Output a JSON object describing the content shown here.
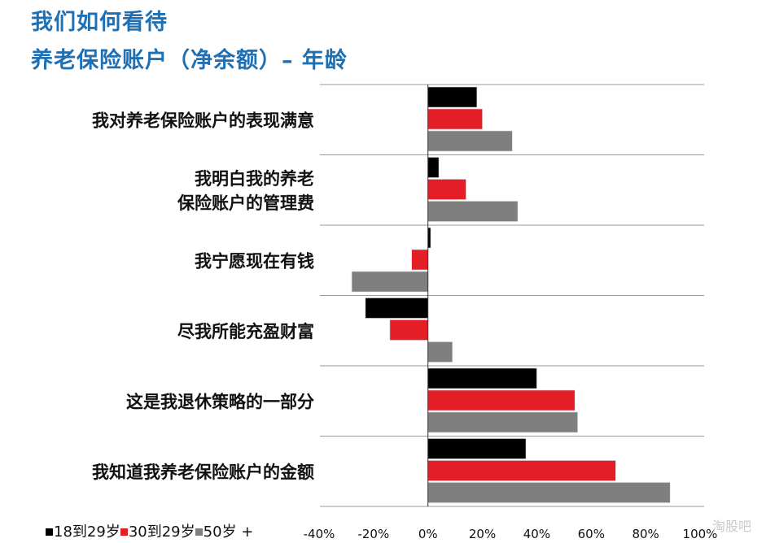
{
  "header": {
    "title_line1": "我们如何看待",
    "title_line2": "养老保险账户（净余额）– 年龄"
  },
  "colors": {
    "title": "#1f6fb3",
    "series": [
      "#000000",
      "#e41e26",
      "#7f7f7f"
    ],
    "grid": "#9a9a9a"
  },
  "legend": [
    "18到29岁",
    "30到29岁",
    "50岁 +"
  ],
  "watermark": "淘股吧",
  "chart_data": {
    "type": "bar",
    "orientation": "horizontal",
    "categories": [
      "我对养老保险账户的表现满意",
      "我明白我的养老保险账户的管理费",
      "我宁愿现在有钱",
      "尽我所能充盈财富",
      "这是我退休策略的一部分",
      "我知道我养老保险账户的金额"
    ],
    "category_label_lines": [
      [
        "我对养老保险账户的表现满意"
      ],
      [
        "我明白我的养老",
        "保险账户的管理费"
      ],
      [
        "我宁愿现在有钱"
      ],
      [
        "尽我所能充盈财富"
      ],
      [
        "这是我退休策略的一部分"
      ],
      [
        "我知道我养老保险账户的金额"
      ]
    ],
    "series": [
      {
        "name": "18到29岁",
        "values": [
          18,
          4,
          1,
          -23,
          40,
          36
        ]
      },
      {
        "name": "30到29岁",
        "values": [
          20,
          14,
          -6,
          -14,
          54,
          69
        ]
      },
      {
        "name": "50岁 +",
        "values": [
          31,
          33,
          -28,
          9,
          55,
          89
        ]
      }
    ],
    "xlim": [
      -40,
      100
    ],
    "xticks": [
      "-40%",
      "-20%",
      "0%",
      "20%",
      "40%",
      "60%",
      "80%",
      "100%"
    ],
    "xtick_values": [
      -40,
      -20,
      0,
      20,
      40,
      60,
      80,
      100
    ],
    "legend_position": "bottom-left",
    "grid": false
  }
}
